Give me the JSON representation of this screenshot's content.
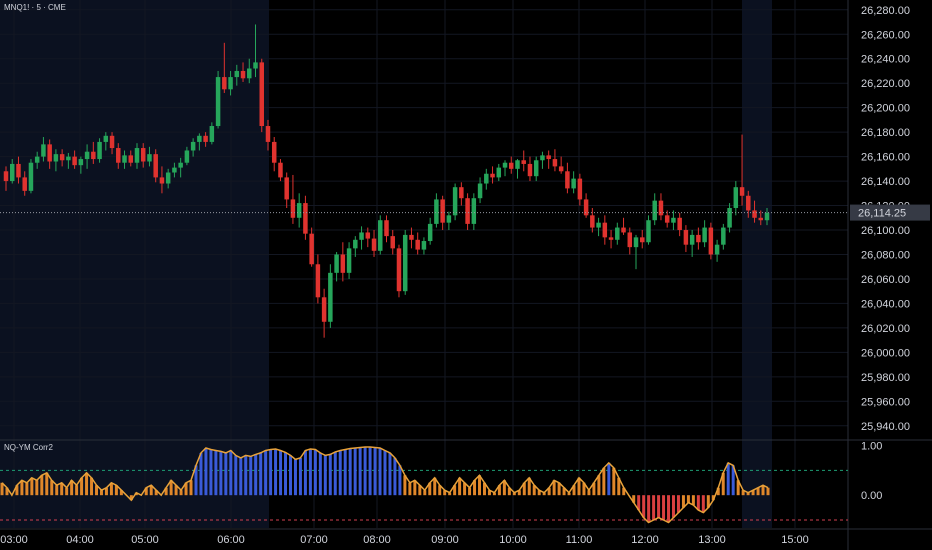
{
  "header": {
    "symbol_label": "MNQ1! · 5 · CME",
    "indicator_label": "NQ-YM Corr2"
  },
  "colors": {
    "background": "#000000",
    "session_shade": "#0b1120",
    "grid": "#131722",
    "bull": "#26a65b",
    "bear": "#e0332f",
    "price_line": "#9598a1",
    "corr_high": "#3a5bd9",
    "corr_mid": "#e0872a",
    "corr_low": "#d94040",
    "level_upper": "#1e9e74",
    "level_lower": "#d04050"
  },
  "price_badge": "26,114.25",
  "chart_data": {
    "type": "candlestick",
    "symbol": "MNQ1!",
    "interval": "5",
    "exchange": "CME",
    "x_ticks": [
      "03:00",
      "04:00",
      "05:00",
      "06:00",
      "07:00",
      "08:00",
      "09:00",
      "10:00",
      "11:00",
      "12:00",
      "13:00",
      "15:00"
    ],
    "y_ticks": [
      "26,280.00",
      "26,260.00",
      "26,240.00",
      "26,220.00",
      "26,200.00",
      "26,180.00",
      "26,160.00",
      "26,140.00",
      "26,120.00",
      "26,100.00",
      "26,080.00",
      "26,060.00",
      "26,040.00",
      "26,020.00",
      "26,000.00",
      "25,980.00",
      "25,960.00",
      "25,940.00"
    ],
    "y_range": [
      25930,
      26288
    ],
    "last_price": 26114.25,
    "candles": [
      [
        26148,
        26152,
        26132,
        26140
      ],
      [
        26140,
        26158,
        26138,
        26154
      ],
      [
        26154,
        26160,
        26138,
        26143
      ],
      [
        26143,
        26148,
        26128,
        26132
      ],
      [
        26132,
        26158,
        26130,
        26155
      ],
      [
        26155,
        26164,
        26150,
        26160
      ],
      [
        26160,
        26176,
        26156,
        26170
      ],
      [
        26170,
        26174,
        26150,
        26156
      ],
      [
        26156,
        26166,
        26148,
        26162
      ],
      [
        26162,
        26166,
        26152,
        26157
      ],
      [
        26157,
        26163,
        26150,
        26160
      ],
      [
        26160,
        26165,
        26150,
        26153
      ],
      [
        26153,
        26160,
        26146,
        26158
      ],
      [
        26158,
        26170,
        26150,
        26164
      ],
      [
        26164,
        26172,
        26154,
        26158
      ],
      [
        26158,
        26175,
        26155,
        26172
      ],
      [
        26172,
        26180,
        26165,
        26177
      ],
      [
        26177,
        26180,
        26162,
        26167
      ],
      [
        26167,
        26171,
        26150,
        26155
      ],
      [
        26155,
        26165,
        26150,
        26161
      ],
      [
        26161,
        26165,
        26152,
        26155
      ],
      [
        26155,
        26171,
        26150,
        26167
      ],
      [
        26167,
        26171,
        26151,
        26156
      ],
      [
        26156,
        26168,
        26152,
        26162
      ],
      [
        26162,
        26166,
        26139,
        26143
      ],
      [
        26143,
        26152,
        26130,
        26138
      ],
      [
        26138,
        26150,
        26134,
        26147
      ],
      [
        26147,
        26155,
        26143,
        26151
      ],
      [
        26151,
        26159,
        26143,
        26155
      ],
      [
        26155,
        26168,
        26153,
        26165
      ],
      [
        26165,
        26175,
        26160,
        26172
      ],
      [
        26172,
        26179,
        26165,
        26177
      ],
      [
        26177,
        26180,
        26168,
        26172
      ],
      [
        26172,
        26188,
        26170,
        26185
      ],
      [
        26185,
        26230,
        26183,
        26225
      ],
      [
        26225,
        26253,
        26212,
        26215
      ],
      [
        26215,
        26230,
        26210,
        26225
      ],
      [
        26225,
        26235,
        26218,
        26230
      ],
      [
        26230,
        26237,
        26221,
        26224
      ],
      [
        26224,
        26240,
        26220,
        26232
      ],
      [
        26232,
        26268,
        26225,
        26237
      ],
      [
        26237,
        26240,
        26180,
        26185
      ],
      [
        26185,
        26190,
        26165,
        26172
      ],
      [
        26172,
        26176,
        26148,
        26155
      ],
      [
        26155,
        26158,
        26140,
        26143
      ],
      [
        26143,
        26147,
        26118,
        26125
      ],
      [
        26125,
        26145,
        26105,
        26110
      ],
      [
        26110,
        26130,
        26102,
        26122
      ],
      [
        26122,
        26128,
        26092,
        26097
      ],
      [
        26097,
        26102,
        26070,
        26072
      ],
      [
        26072,
        26080,
        26040,
        26045
      ],
      [
        26045,
        26052,
        26012,
        26025
      ],
      [
        26025,
        26072,
        26020,
        26065
      ],
      [
        26065,
        26082,
        26058,
        26080
      ],
      [
        26080,
        26090,
        26058,
        26065
      ],
      [
        26065,
        26090,
        26060,
        26085
      ],
      [
        26085,
        26095,
        26078,
        26092
      ],
      [
        26092,
        26103,
        26084,
        26098
      ],
      [
        26098,
        26102,
        26086,
        26093
      ],
      [
        26093,
        26100,
        26078,
        26083
      ],
      [
        26083,
        26112,
        26080,
        26108
      ],
      [
        26108,
        26112,
        26090,
        26095
      ],
      [
        26095,
        26100,
        26080,
        26085
      ],
      [
        26085,
        26088,
        26045,
        26050
      ],
      [
        26050,
        26100,
        26047,
        26096
      ],
      [
        26096,
        26102,
        26085,
        26092
      ],
      [
        26092,
        26098,
        26080,
        26084
      ],
      [
        26084,
        26094,
        26080,
        26091
      ],
      [
        26091,
        26110,
        26088,
        26105
      ],
      [
        26105,
        26130,
        26102,
        26125
      ],
      [
        26125,
        26128,
        26100,
        26106
      ],
      [
        26106,
        26115,
        26100,
        26112
      ],
      [
        26112,
        26138,
        26108,
        26135
      ],
      [
        26135,
        26139,
        26120,
        26126
      ],
      [
        26126,
        26130,
        26100,
        26105
      ],
      [
        26105,
        26130,
        26100,
        26126
      ],
      [
        26126,
        26143,
        26122,
        26138
      ],
      [
        26138,
        26150,
        26133,
        26146
      ],
      [
        26146,
        26152,
        26138,
        26143
      ],
      [
        26143,
        26154,
        26140,
        26151
      ],
      [
        26151,
        26157,
        26144,
        26155
      ],
      [
        26155,
        26160,
        26146,
        26150
      ],
      [
        26150,
        26158,
        26142,
        26157
      ],
      [
        26157,
        26165,
        26148,
        26154
      ],
      [
        26154,
        26160,
        26140,
        26144
      ],
      [
        26144,
        26160,
        26140,
        26157
      ],
      [
        26157,
        26164,
        26150,
        26161
      ],
      [
        26161,
        26165,
        26150,
        26158
      ],
      [
        26158,
        26166,
        26148,
        26152
      ],
      [
        26152,
        26160,
        26146,
        26148
      ],
      [
        26148,
        26155,
        26130,
        26134
      ],
      [
        26134,
        26148,
        26130,
        26142
      ],
      [
        26142,
        26146,
        26120,
        26125
      ],
      [
        26125,
        26130,
        26110,
        26112
      ],
      [
        26112,
        26118,
        26098,
        26102
      ],
      [
        26102,
        26110,
        26095,
        26106
      ],
      [
        26106,
        26112,
        26088,
        26094
      ],
      [
        26094,
        26100,
        26085,
        26092
      ],
      [
        26092,
        26106,
        26088,
        26102
      ],
      [
        26102,
        26110,
        26096,
        26098
      ],
      [
        26098,
        26102,
        26080,
        26086
      ],
      [
        26086,
        26096,
        26068,
        26094
      ],
      [
        26094,
        26100,
        26085,
        26090
      ],
      [
        26090,
        26112,
        26088,
        26108
      ],
      [
        26108,
        26130,
        26104,
        26124
      ],
      [
        26124,
        26130,
        26108,
        26112
      ],
      [
        26112,
        26116,
        26102,
        26106
      ],
      [
        26106,
        26116,
        26100,
        26110
      ],
      [
        26110,
        26114,
        26095,
        26100
      ],
      [
        26100,
        26104,
        26082,
        26088
      ],
      [
        26088,
        26100,
        26078,
        26096
      ],
      [
        26096,
        26102,
        26084,
        26090
      ],
      [
        26090,
        26108,
        26086,
        26102
      ],
      [
        26102,
        26106,
        26076,
        26080
      ],
      [
        26080,
        26092,
        26074,
        26088
      ],
      [
        26088,
        26105,
        26084,
        26102
      ],
      [
        26102,
        26122,
        26098,
        26118
      ],
      [
        26118,
        26140,
        26112,
        26135
      ],
      [
        26135,
        26178,
        26120,
        26128
      ],
      [
        26128,
        26132,
        26110,
        26116
      ],
      [
        26116,
        26124,
        26106,
        26110
      ],
      [
        26110,
        26116,
        26104,
        26108
      ],
      [
        26108,
        26118,
        26104,
        26114
      ]
    ],
    "indicator": {
      "name": "NQ-YM Corr2",
      "y_range": [
        -0.66,
        1.07
      ],
      "y_ticks": [
        "1.00",
        "0.00"
      ],
      "levels": [
        0.5,
        -0.5
      ],
      "values": [
        0.25,
        0.15,
        0.0,
        0.2,
        0.3,
        0.25,
        0.35,
        0.3,
        0.4,
        0.45,
        0.3,
        0.2,
        0.25,
        0.15,
        0.3,
        0.2,
        0.35,
        0.45,
        0.35,
        0.2,
        0.1,
        0.15,
        0.25,
        0.2,
        0.1,
        0.0,
        -0.1,
        0.05,
        0.0,
        0.15,
        0.2,
        0.1,
        0.0,
        0.15,
        0.3,
        0.2,
        0.1,
        0.25,
        0.3,
        0.6,
        0.85,
        0.95,
        0.92,
        0.9,
        0.88,
        0.85,
        0.9,
        0.8,
        0.75,
        0.8,
        0.78,
        0.82,
        0.85,
        0.9,
        0.92,
        0.93,
        0.9,
        0.86,
        0.8,
        0.72,
        0.75,
        0.9,
        0.93,
        0.92,
        0.85,
        0.8,
        0.82,
        0.87,
        0.9,
        0.92,
        0.94,
        0.95,
        0.96,
        0.97,
        0.97,
        0.96,
        0.95,
        0.9,
        0.85,
        0.75,
        0.6,
        0.4,
        0.25,
        0.3,
        0.2,
        0.1,
        0.25,
        0.35,
        0.2,
        0.1,
        0.05,
        0.2,
        0.35,
        0.25,
        0.15,
        0.3,
        0.4,
        0.25,
        0.1,
        0.05,
        0.2,
        0.3,
        0.15,
        0.05,
        0.1,
        0.25,
        0.35,
        0.2,
        0.1,
        0.05,
        0.15,
        0.3,
        0.25,
        0.15,
        0.05,
        0.2,
        0.35,
        0.25,
        0.1,
        0.25,
        0.4,
        0.55,
        0.65,
        0.55,
        0.35,
        0.15,
        0.0,
        -0.15,
        -0.3,
        -0.45,
        -0.55,
        -0.5,
        -0.45,
        -0.5,
        -0.55,
        -0.45,
        -0.35,
        -0.25,
        -0.15,
        -0.2,
        -0.3,
        -0.35,
        -0.25,
        -0.1,
        0.15,
        0.45,
        0.65,
        0.6,
        0.3,
        0.1,
        0.05,
        0.1,
        0.15,
        0.2,
        0.15
      ]
    }
  }
}
